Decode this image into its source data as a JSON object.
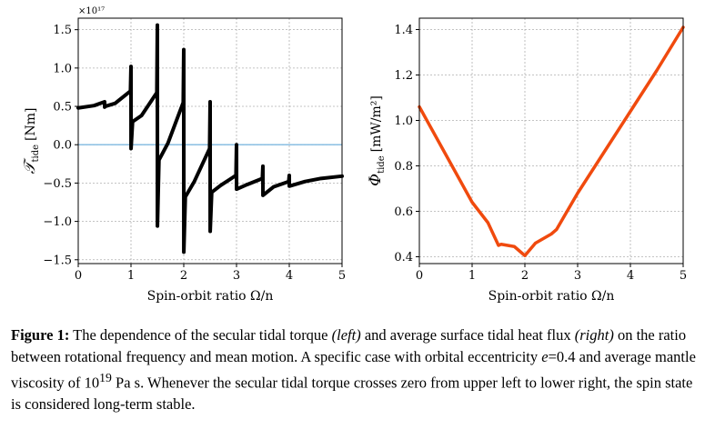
{
  "chart_data": [
    {
      "type": "line",
      "ylabel_symbol": "𝒯",
      "ylabel_sub": "tide",
      "ylabel_unit": "[Nm]",
      "xlabel": "Spin-orbit ratio Ω/n",
      "xlim": [
        0,
        5
      ],
      "ylim": [
        -1.55,
        1.65
      ],
      "xticks": [
        "0",
        "1",
        "2",
        "3",
        "4",
        "5"
      ],
      "yticks": [
        "−1.5",
        "−1.0",
        "−0.5",
        "0.0",
        "0.5",
        "1.0",
        "1.5"
      ],
      "ytick_values": [
        -1.5,
        -1.0,
        -0.5,
        0.0,
        0.5,
        1.0,
        1.5
      ],
      "offset_text": "×10¹⁷",
      "grid": true,
      "zero_line_color": "#7fb8e0",
      "line_color": "#000000",
      "series": [
        {
          "x": [
            0,
            0.3,
            0.5,
            0.501,
            0.51,
            0.7,
            0.99,
            1.0,
            1.001,
            1.03,
            1.2,
            1.49,
            1.5,
            1.501,
            1.53,
            1.7,
            1.99,
            2.0,
            2.001,
            2.03,
            2.2,
            2.49,
            2.5,
            2.501,
            2.53,
            2.7,
            2.99,
            3.0,
            3.001,
            3.2,
            3.49,
            3.5,
            3.501,
            3.7,
            3.99,
            4.0,
            4.001,
            4.3,
            4.6,
            5.0
          ],
          "y": [
            0.48,
            0.51,
            0.56,
            0.49,
            0.5,
            0.54,
            0.7,
            1.02,
            -0.05,
            0.3,
            0.38,
            0.68,
            1.56,
            -1.06,
            -0.2,
            0.02,
            0.55,
            1.24,
            -1.4,
            -0.68,
            -0.48,
            -0.05,
            0.56,
            -1.13,
            -0.62,
            -0.53,
            -0.4,
            0.0,
            -0.58,
            -0.52,
            -0.44,
            -0.28,
            -0.66,
            -0.55,
            -0.48,
            -0.4,
            -0.54,
            -0.48,
            -0.44,
            -0.41
          ]
        }
      ]
    },
    {
      "type": "line",
      "ylabel_symbol": "Φ",
      "ylabel_sub": "tide",
      "ylabel_unit": "[mW/m²]",
      "xlabel": "Spin-orbit ratio Ω/n",
      "xlim": [
        0,
        5
      ],
      "ylim": [
        0.37,
        1.45
      ],
      "xticks": [
        "0",
        "1",
        "2",
        "3",
        "4",
        "5"
      ],
      "yticks": [
        "0.4",
        "0.6",
        "0.8",
        "1.0",
        "1.2",
        "1.4"
      ],
      "ytick_values": [
        0.4,
        0.6,
        0.8,
        1.0,
        1.2,
        1.4
      ],
      "grid": true,
      "line_color": "#f04a0e",
      "series": [
        {
          "x": [
            0,
            0.5,
            1.0,
            1.3,
            1.5,
            1.55,
            1.8,
            2.0,
            2.2,
            2.5,
            2.6,
            3.0,
            3.5,
            4.0,
            4.5,
            5.0
          ],
          "y": [
            1.06,
            0.85,
            0.64,
            0.55,
            0.45,
            0.455,
            0.445,
            0.405,
            0.46,
            0.5,
            0.52,
            0.68,
            0.86,
            1.04,
            1.22,
            1.41
          ]
        }
      ]
    }
  ],
  "caption": {
    "lead": "Figure 1:",
    "t1": " The dependence of the secular tidal torque ",
    "left": "(left)",
    "t2": " and average surface tidal heat flux ",
    "right": "(right)",
    "t3": " on the ratio between rotational frequency and mean motion. A specific case with orbital eccentricity ",
    "e": "e",
    "t4": "=0.4 and average mantle viscosity of 10",
    "exp": "19",
    "t5": " Pa s. Whenever the secular tidal torque crosses zero from upper left to lower right, the spin state is considered long-term stable."
  }
}
